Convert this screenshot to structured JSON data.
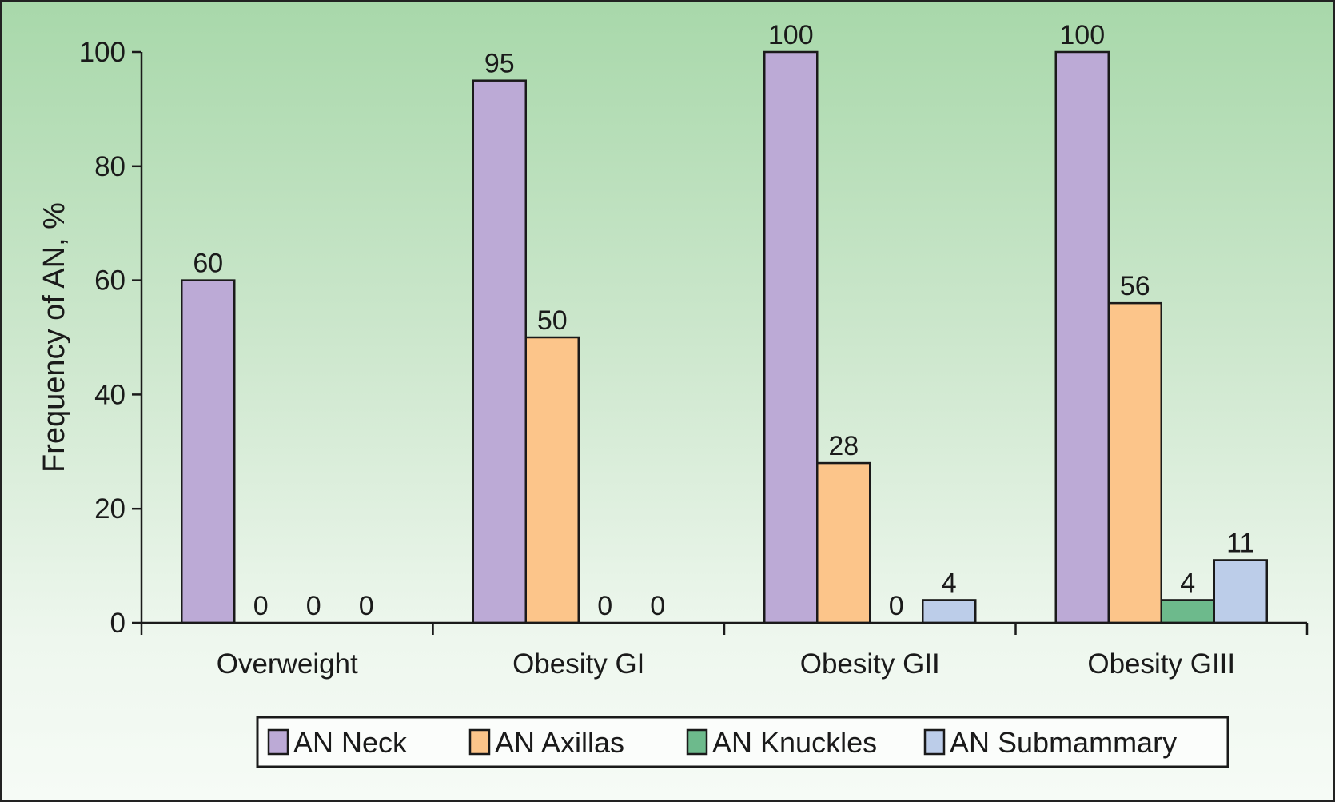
{
  "chart_data": {
    "type": "bar",
    "title": "",
    "xlabel": "",
    "ylabel": "Frequency of AN, %",
    "ylim": [
      0,
      100
    ],
    "yticks": [
      0,
      20,
      40,
      60,
      80,
      100
    ],
    "grid": false,
    "legend_placement": "bottom",
    "categories": [
      "Overweight",
      "Obesity GI",
      "Obesity GII",
      "Obesity GIII"
    ],
    "series": [
      {
        "name": "AN Neck",
        "color": "#bcaad6",
        "values": [
          60,
          95,
          100,
          100
        ]
      },
      {
        "name": "AN Axillas",
        "color": "#fcc58a",
        "values": [
          0,
          50,
          28,
          56
        ]
      },
      {
        "name": "AN Knuckles",
        "color": "#6dba8c",
        "values": [
          0,
          0,
          0,
          4
        ]
      },
      {
        "name": "AN Submammary",
        "color": "#bccde9",
        "values": [
          0,
          0,
          4,
          11
        ]
      }
    ],
    "data_labels": [
      [
        "60",
        "0",
        "0",
        "0"
      ],
      [
        "95",
        "50",
        "0",
        "0"
      ],
      [
        "100",
        "28",
        "0",
        "4"
      ],
      [
        "100",
        "56",
        "4",
        "11"
      ]
    ],
    "missing_label": [
      [
        false,
        false,
        false,
        false
      ],
      [
        false,
        false,
        false,
        false
      ],
      [
        false,
        false,
        true,
        false
      ],
      [
        false,
        false,
        false,
        false
      ]
    ]
  }
}
